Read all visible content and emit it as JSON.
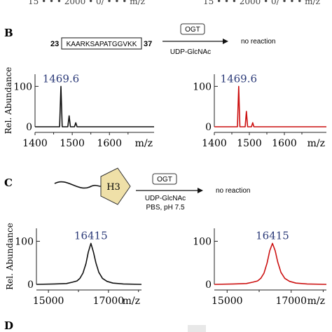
{
  "top_fragment": {
    "left": "15 • • • 2000 • 0/ • • • m/z",
    "right": "15 • • • 2000 • 0/ • • • m/z"
  },
  "panels": {
    "B": {
      "letter": "B",
      "peptide": {
        "start": "23",
        "sequence": "KAARKSAPATGGVKK",
        "end": "37"
      },
      "enzyme": "OGT",
      "cofactor": "UDP-GlcNAc",
      "result": "no reaction"
    },
    "C": {
      "letter": "C",
      "protein": "H3",
      "enzyme": "OGT",
      "cofactor": "UDP-GlcNAc",
      "buffer": "PBS, pH 7.5",
      "result": "no reaction"
    },
    "D": {
      "letter": "D"
    }
  },
  "colors": {
    "black_trace": "#111111",
    "red_trace": "#cc1111",
    "peak_label": "#2b3a78",
    "h3_fill": "#efe0a8"
  },
  "chart_data": [
    {
      "type": "line",
      "panel": "B",
      "color": "black",
      "title": "",
      "xlabel": "m/z",
      "ylabel": "Rel. Abundance",
      "xlim": [
        1400,
        1720
      ],
      "ylim": [
        0,
        130
      ],
      "xticks": [
        1400,
        1500,
        1600
      ],
      "yticks": [
        0,
        100
      ],
      "peak_label": "1469.6",
      "series": [
        {
          "x": [
            1400,
            1455,
            1466,
            1469.6,
            1473,
            1488,
            1491.6,
            1495,
            1506,
            1509.6,
            1513,
            1525,
            1720
          ],
          "y": [
            0,
            0,
            0,
            100,
            0,
            0,
            27,
            0,
            0,
            10,
            0,
            0,
            0
          ]
        }
      ]
    },
    {
      "type": "line",
      "panel": "B",
      "color": "red",
      "title": "",
      "xlabel": "m/z",
      "ylabel": "",
      "xlim": [
        1400,
        1720
      ],
      "ylim": [
        0,
        130
      ],
      "xticks": [
        1400,
        1500,
        1600
      ],
      "yticks": [
        0,
        100
      ],
      "peak_label": "1469.6",
      "series": [
        {
          "x": [
            1400,
            1455,
            1466,
            1469.6,
            1473,
            1488,
            1491.6,
            1495,
            1506,
            1509.6,
            1513,
            1525,
            1720
          ],
          "y": [
            0,
            0,
            0,
            100,
            0,
            0,
            38,
            0,
            0,
            10,
            0,
            0,
            0
          ]
        }
      ]
    },
    {
      "type": "line",
      "panel": "C",
      "color": "black",
      "title": "",
      "xlabel": "m/z",
      "ylabel": "Rel. Abundance",
      "xlim": [
        14600,
        18100
      ],
      "ylim": [
        0,
        130
      ],
      "xticks": [
        15000,
        17000
      ],
      "yticks": [
        0,
        100
      ],
      "peak_label": "16415",
      "series": [
        {
          "x": [
            14600,
            15200,
            15600,
            15800,
            15950,
            16050,
            16150,
            16250,
            16330,
            16415,
            16500,
            16580,
            16680,
            16800,
            16950,
            17150,
            17500,
            18100
          ],
          "y": [
            0,
            1,
            2,
            5,
            8,
            14,
            26,
            48,
            75,
            95,
            75,
            50,
            28,
            14,
            7,
            3,
            1,
            0
          ]
        }
      ]
    },
    {
      "type": "line",
      "panel": "C",
      "color": "red",
      "title": "",
      "xlabel": "m/z",
      "ylabel": "",
      "xlim": [
        14600,
        18100
      ],
      "ylim": [
        0,
        130
      ],
      "xticks": [
        15000,
        17000
      ],
      "yticks": [
        0,
        100
      ],
      "peak_label": "16415",
      "series": [
        {
          "x": [
            14600,
            15200,
            15600,
            15800,
            15950,
            16050,
            16150,
            16250,
            16330,
            16415,
            16500,
            16580,
            16680,
            16800,
            16950,
            17150,
            17500,
            18100
          ],
          "y": [
            0,
            1,
            2,
            5,
            8,
            14,
            26,
            50,
            78,
            95,
            78,
            52,
            28,
            14,
            7,
            3,
            1,
            0
          ]
        }
      ]
    }
  ]
}
